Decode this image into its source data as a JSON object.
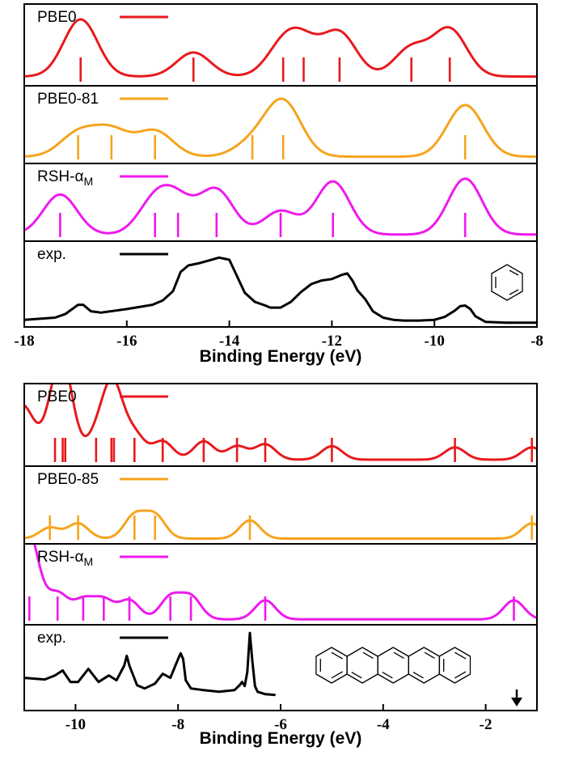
{
  "chart_data": [
    {
      "type": "line",
      "molecule": "benzene",
      "xlabel": "Binding Energy (eV)",
      "xlim": [
        -18,
        -8
      ],
      "xticks": [
        -18,
        -16,
        -14,
        -12,
        -10,
        -8
      ],
      "panels": [
        {
          "name": "PBE0",
          "color": "#e8191d",
          "label": "PBE0",
          "sticks": [
            -16.9,
            -14.7,
            -12.95,
            -12.55,
            -11.85,
            -10.45,
            -9.7
          ],
          "widths": [
            0.3,
            0.3,
            0.3,
            0.3,
            0.3,
            0.3,
            0.3
          ],
          "amps": [
            1,
            0.42,
            0.5,
            0.5,
            0.75,
            0.5,
            0.82
          ],
          "sigma": 0.33,
          "ylim": [
            -0.15,
            1.28
          ],
          "baseline": 0.012
        },
        {
          "name": "PBE0-81",
          "color": "#f5a41c",
          "label": "PBE0-81",
          "sticks": [
            -16.95,
            -16.3,
            -15.45,
            -13.55,
            -12.95,
            -9.4
          ],
          "widths": [
            0.3,
            0.3,
            0.3,
            0.3,
            0.3,
            0.3
          ],
          "amps": [
            0.38,
            0.42,
            0.42,
            0.22,
            0.9,
            0.85
          ],
          "sigma": 0.35,
          "ylim": [
            -0.1,
            1.18
          ],
          "baseline": 0.012
        },
        {
          "name": "RSH-alpha-M",
          "color": "#ee19ee",
          "label": "RSH-α",
          "label_sub": "M",
          "sticks": [
            -17.3,
            -15.45,
            -15.0,
            -14.25,
            -13.0,
            -11.98,
            -9.4
          ],
          "widths": [
            0.3,
            0.3,
            0.3,
            0.3,
            0.3,
            0.3,
            0.3
          ],
          "amps": [
            0.68,
            0.55,
            0.5,
            0.75,
            0.4,
            0.9,
            0.95
          ],
          "sigma": 0.33,
          "ylim": [
            -0.1,
            1.22
          ],
          "baseline": 0.012
        },
        {
          "name": "exp",
          "color": "#000000",
          "label": "exp.",
          "experimental": true,
          "x": [
            -18,
            -17.4,
            -17.2,
            -16.95,
            -16.85,
            -16.7,
            -16.5,
            -16.0,
            -15.5,
            -15.3,
            -15.1,
            -14.95,
            -14.8,
            -14.6,
            -14.4,
            -14.2,
            -14.0,
            -13.85,
            -13.7,
            -13.5,
            -13.3,
            -13.2,
            -13.0,
            -12.8,
            -12.6,
            -12.4,
            -12.2,
            -12.0,
            -11.8,
            -11.7,
            -11.6,
            -11.5,
            -11.35,
            -11.2,
            -11.0,
            -10.8,
            -10.6,
            -10.3,
            -10.0,
            -9.8,
            -9.6,
            -9.5,
            -9.4,
            -9.3,
            -9.2,
            -9.0,
            -8.6,
            -8.0
          ],
          "y": [
            0.05,
            0.08,
            0.13,
            0.26,
            0.26,
            0.17,
            0.15,
            0.2,
            0.26,
            0.32,
            0.45,
            0.72,
            0.81,
            0.84,
            0.88,
            0.92,
            0.89,
            0.66,
            0.43,
            0.3,
            0.25,
            0.22,
            0.22,
            0.3,
            0.44,
            0.55,
            0.6,
            0.62,
            0.68,
            0.7,
            0.6,
            0.46,
            0.34,
            0.17,
            0.08,
            0.05,
            0.04,
            0.04,
            0.05,
            0.09,
            0.18,
            0.24,
            0.25,
            0.2,
            0.1,
            0.02,
            0.01,
            0.01
          ],
          "ylim": [
            -0.05,
            1.15
          ]
        }
      ]
    },
    {
      "type": "line",
      "molecule": "pentacene",
      "xlabel": "Binding Energy (eV)",
      "xlim": [
        -11,
        -1
      ],
      "xticks": [
        -10,
        -8,
        -6,
        -4,
        -2
      ],
      "homo_arrow_x": -1.4,
      "panels": [
        {
          "name": "PBE0",
          "color": "#e8191d",
          "label": "PBE0",
          "sticks": [
            -10.4,
            -10.25,
            -10.2,
            -9.6,
            -9.3,
            -9.25,
            -8.85,
            -8.3,
            -7.5,
            -6.85,
            -6.3,
            -5.0,
            -2.6,
            -1.1
          ],
          "widths": [
            0.3,
            0.3,
            0.3,
            0.3,
            0.3,
            0.3,
            0.3,
            0.3,
            0.3,
            0.3,
            0.3,
            0.3,
            0.3,
            0.3
          ],
          "amps": [
            0.6,
            0.6,
            0.6,
            0.35,
            0.6,
            0.6,
            0.4,
            0.3,
            0.3,
            0.22,
            0.25,
            0.22,
            0.2,
            0.2
          ],
          "sigma": 0.2,
          "ylim": [
            -0.1,
            1.25
          ],
          "baseline": 0.006,
          "left_tail": true
        },
        {
          "name": "PBE0-85",
          "color": "#f5a41c",
          "label": "PBE0-85",
          "sticks": [
            -10.5,
            -9.95,
            -8.85,
            -8.45,
            -6.6,
            -1.1
          ],
          "widths": [
            0.3,
            0.3,
            0.3,
            0.3,
            0.3,
            0.3
          ],
          "amps": [
            0.18,
            0.25,
            0.38,
            0.38,
            0.3,
            0.25
          ],
          "sigma": 0.2,
          "ylim": [
            -0.08,
            1.2
          ],
          "baseline": 0.006
        },
        {
          "name": "RSH-alpha-M",
          "color": "#ee19ee",
          "label": "RSH-α",
          "label_sub": "M",
          "sticks": [
            -10.9,
            -10.35,
            -9.85,
            -9.45,
            -8.95,
            -8.15,
            -7.75,
            -6.3,
            -1.45
          ],
          "widths": [
            0.3,
            0.3,
            0.3,
            0.3,
            0.3,
            0.3,
            0.3,
            0.3,
            0.3
          ],
          "amps": [
            0.7,
            0.4,
            0.3,
            0.3,
            0.3,
            0.35,
            0.35,
            0.3,
            0.3
          ],
          "sigma": 0.2,
          "ylim": [
            -0.08,
            1.2
          ],
          "baseline": 0.006,
          "left_tail": true
        },
        {
          "name": "exp",
          "color": "#000000",
          "label": "exp.",
          "experimental": true,
          "x": [
            -11,
            -10.6,
            -10.4,
            -10.25,
            -10.1,
            -9.95,
            -9.75,
            -9.55,
            -9.35,
            -9.2,
            -9.05,
            -9.0,
            -8.95,
            -8.8,
            -8.65,
            -8.45,
            -8.3,
            -8.15,
            -8.0,
            -7.95,
            -7.9,
            -7.85,
            -7.75,
            -7.5,
            -7.2,
            -6.9,
            -6.8,
            -6.75,
            -6.7,
            -6.65,
            -6.6,
            -6.55,
            -6.5,
            -6.45,
            -6.3,
            -6.1
          ],
          "y": [
            0.35,
            0.33,
            0.38,
            0.44,
            0.3,
            0.3,
            0.46,
            0.3,
            0.38,
            0.32,
            0.5,
            0.62,
            0.5,
            0.26,
            0.22,
            0.28,
            0.4,
            0.35,
            0.58,
            0.65,
            0.58,
            0.32,
            0.22,
            0.2,
            0.18,
            0.2,
            0.26,
            0.3,
            0.25,
            0.42,
            0.9,
            0.55,
            0.25,
            0.18,
            0.15,
            0.14
          ],
          "ylim": [
            -0.05,
            1.0
          ]
        }
      ]
    }
  ]
}
